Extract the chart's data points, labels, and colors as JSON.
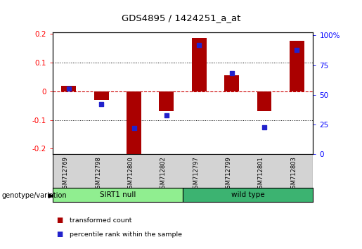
{
  "title": "GDS4895 / 1424251_a_at",
  "samples": [
    "GSM712769",
    "GSM712798",
    "GSM712800",
    "GSM712802",
    "GSM712797",
    "GSM712799",
    "GSM712801",
    "GSM712803"
  ],
  "transformed_counts": [
    0.02,
    -0.03,
    -0.22,
    -0.07,
    0.185,
    0.055,
    -0.07,
    0.175
  ],
  "percentile_ranks": [
    55,
    42,
    22,
    33,
    92,
    68,
    23,
    88
  ],
  "groups": [
    {
      "label": "SIRT1 null",
      "start": 0,
      "end": 4,
      "color": "#90ee90"
    },
    {
      "label": "wild type",
      "start": 4,
      "end": 8,
      "color": "#3cb371"
    }
  ],
  "ylim_left": [
    -0.22,
    0.205
  ],
  "ylim_right": [
    0,
    102.5
  ],
  "yticks_left": [
    -0.2,
    -0.1,
    0.0,
    0.1,
    0.2
  ],
  "yticks_right": [
    0,
    25,
    50,
    75,
    100
  ],
  "bar_color": "#aa0000",
  "dot_color": "#2222cc",
  "bar_width": 0.45,
  "dot_size": 22,
  "background_color": "#ffffff",
  "plot_bg_color": "#ffffff",
  "zero_line_color": "#cc0000",
  "group_label": "genotype/variation"
}
